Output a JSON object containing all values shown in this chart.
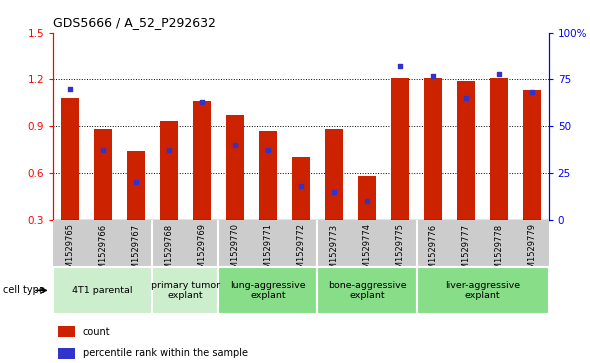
{
  "title": "GDS5666 / A_52_P292632",
  "samples": [
    "GSM1529765",
    "GSM1529766",
    "GSM1529767",
    "GSM1529768",
    "GSM1529769",
    "GSM1529770",
    "GSM1529771",
    "GSM1529772",
    "GSM1529773",
    "GSM1529774",
    "GSM1529775",
    "GSM1529776",
    "GSM1529777",
    "GSM1529778",
    "GSM1529779"
  ],
  "count_values": [
    1.08,
    0.88,
    0.74,
    0.93,
    1.06,
    0.97,
    0.87,
    0.7,
    0.88,
    0.58,
    1.21,
    1.21,
    1.19,
    1.21,
    1.13
  ],
  "percentile_values": [
    70,
    37,
    20,
    37,
    63,
    40,
    37,
    18,
    15,
    10,
    82,
    77,
    65,
    78,
    68
  ],
  "ylim_left": [
    0.3,
    1.5
  ],
  "ylim_right": [
    0,
    100
  ],
  "yticks_left": [
    0.3,
    0.6,
    0.9,
    1.2,
    1.5
  ],
  "yticks_right": [
    0,
    25,
    50,
    75,
    100
  ],
  "yticklabels_right": [
    "0",
    "25",
    "50",
    "75",
    "100%"
  ],
  "bar_color": "#cc2200",
  "dot_color": "#3333cc",
  "cell_type_groups": [
    {
      "label": "4T1 parental",
      "indices": [
        0,
        1,
        2
      ],
      "color": "#cceecc"
    },
    {
      "label": "primary tumor\nexplant",
      "indices": [
        3,
        4
      ],
      "color": "#cceecc"
    },
    {
      "label": "lung-aggressive\nexplant",
      "indices": [
        5,
        6,
        7
      ],
      "color": "#88dd88"
    },
    {
      "label": "bone-aggressive\nexplant",
      "indices": [
        8,
        9,
        10
      ],
      "color": "#88dd88"
    },
    {
      "label": "liver-aggressive\nexplant",
      "indices": [
        11,
        12,
        13,
        14
      ],
      "color": "#88dd88"
    }
  ],
  "grid_linestyle": ":",
  "legend_items": [
    {
      "label": "count",
      "color": "#cc2200"
    },
    {
      "label": "percentile rank within the sample",
      "color": "#3333cc"
    }
  ]
}
